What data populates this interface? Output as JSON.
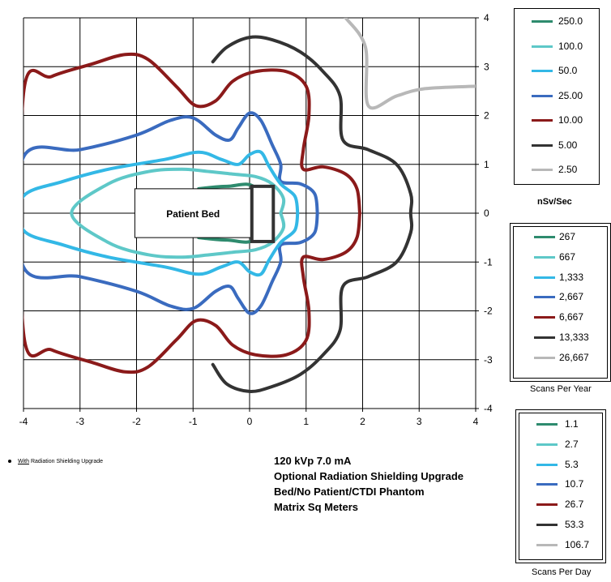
{
  "chart_data": {
    "type": "contour",
    "xlim": [
      -4,
      4
    ],
    "ylim": [
      -4,
      4
    ],
    "x_ticks": [
      "-4",
      "-3",
      "-2",
      "-1",
      "0",
      "1",
      "2",
      "3",
      "4"
    ],
    "y_ticks": [
      "4",
      "3",
      "2",
      "1",
      "0",
      "-1",
      "-2",
      "-3",
      "-4"
    ],
    "grid": true,
    "object_label": "Patient Bed",
    "series": [
      {
        "name": "250.0",
        "color": "#2e8b6e",
        "points": [
          [
            -0.9,
            0.5
          ],
          [
            -0.4,
            0.55
          ],
          [
            0.1,
            0.5
          ],
          [
            0.1,
            -0.5
          ],
          [
            -0.4,
            -0.55
          ],
          [
            -0.9,
            -0.5
          ]
        ]
      },
      {
        "name": "100.0",
        "color": "#5ec8c8",
        "points": [
          [
            0.55,
            0
          ],
          [
            0.6,
            0.3
          ],
          [
            0.4,
            0.6
          ],
          [
            0.1,
            0.75
          ],
          [
            -0.3,
            0.8
          ],
          [
            -0.7,
            0.85
          ],
          [
            -1.2,
            0.9
          ],
          [
            -1.8,
            0.85
          ],
          [
            -2.5,
            0.6
          ],
          [
            -3.15,
            0
          ],
          [
            -2.5,
            -0.6
          ],
          [
            -1.8,
            -0.85
          ],
          [
            -1.2,
            -0.9
          ],
          [
            -0.7,
            -0.85
          ],
          [
            -0.3,
            -0.8
          ],
          [
            0.1,
            -0.75
          ],
          [
            0.4,
            -0.6
          ],
          [
            0.6,
            -0.3
          ],
          [
            0.55,
            0
          ]
        ]
      },
      {
        "name": "50.0",
        "color": "#33b8e6",
        "points": [
          [
            0.85,
            0
          ],
          [
            0.8,
            0.35
          ],
          [
            0.55,
            0.6
          ],
          [
            0.35,
            0.95
          ],
          [
            0.2,
            1.25
          ],
          [
            0,
            1.2
          ],
          [
            -0.2,
            1.0
          ],
          [
            -0.5,
            1.1
          ],
          [
            -0.9,
            1.25
          ],
          [
            -1.5,
            1.1
          ],
          [
            -2.5,
            0.9
          ],
          [
            -3.3,
            0.65
          ],
          [
            -4,
            0.35
          ],
          [
            -4,
            -0.35
          ],
          [
            -3.3,
            -0.65
          ],
          [
            -2.5,
            -0.9
          ],
          [
            -1.5,
            -1.1
          ],
          [
            -0.9,
            -1.25
          ],
          [
            -0.5,
            -1.1
          ],
          [
            -0.2,
            -1.0
          ],
          [
            0,
            -1.2
          ],
          [
            0.2,
            -1.25
          ],
          [
            0.35,
            -0.95
          ],
          [
            0.55,
            -0.6
          ],
          [
            0.8,
            -0.35
          ],
          [
            0.85,
            0
          ]
        ]
      },
      {
        "name": "25.00",
        "color": "#3a6bbf",
        "points": [
          [
            1.2,
            0
          ],
          [
            1.15,
            0.4
          ],
          [
            0.9,
            0.6
          ],
          [
            0.55,
            0.65
          ],
          [
            0.55,
            1.0
          ],
          [
            0.4,
            1.4
          ],
          [
            0.2,
            1.9
          ],
          [
            0,
            2.05
          ],
          [
            -0.2,
            1.75
          ],
          [
            -0.35,
            1.5
          ],
          [
            -0.6,
            1.6
          ],
          [
            -1.0,
            1.95
          ],
          [
            -1.4,
            1.9
          ],
          [
            -2.0,
            1.6
          ],
          [
            -3.0,
            1.3
          ],
          [
            -4,
            1.15
          ],
          [
            -4,
            -1.1
          ],
          [
            -3.0,
            -1.3
          ],
          [
            -2.0,
            -1.6
          ],
          [
            -1.4,
            -1.9
          ],
          [
            -1.0,
            -1.95
          ],
          [
            -0.6,
            -1.6
          ],
          [
            -0.35,
            -1.5
          ],
          [
            -0.2,
            -1.75
          ],
          [
            0,
            -2.05
          ],
          [
            0.2,
            -1.9
          ],
          [
            0.4,
            -1.4
          ],
          [
            0.55,
            -1.0
          ],
          [
            0.55,
            -0.65
          ],
          [
            0.9,
            -0.6
          ],
          [
            1.15,
            -0.4
          ],
          [
            1.2,
            0
          ]
        ]
      },
      {
        "name": "10.00",
        "color": "#8b1a1a",
        "points": [
          [
            1.95,
            0
          ],
          [
            1.9,
            0.5
          ],
          [
            1.7,
            0.8
          ],
          [
            1.3,
            0.95
          ],
          [
            0.95,
            0.9
          ],
          [
            0.95,
            1.3
          ],
          [
            1.05,
            2.0
          ],
          [
            1.0,
            2.6
          ],
          [
            0.65,
            2.9
          ],
          [
            0.1,
            2.9
          ],
          [
            -0.3,
            2.7
          ],
          [
            -0.6,
            2.3
          ],
          [
            -0.95,
            2.2
          ],
          [
            -1.3,
            2.6
          ],
          [
            -1.8,
            3.15
          ],
          [
            -2.2,
            3.25
          ],
          [
            -2.8,
            3.05
          ],
          [
            -3.5,
            2.8
          ],
          [
            -4,
            2.45
          ],
          [
            -4,
            -2.45
          ],
          [
            -3.5,
            -2.8
          ],
          [
            -2.8,
            -3.05
          ],
          [
            -2.2,
            -3.25
          ],
          [
            -1.8,
            -3.15
          ],
          [
            -1.3,
            -2.6
          ],
          [
            -0.95,
            -2.2
          ],
          [
            -0.6,
            -2.3
          ],
          [
            -0.3,
            -2.7
          ],
          [
            0.1,
            -2.9
          ],
          [
            0.65,
            -2.9
          ],
          [
            1.0,
            -2.6
          ],
          [
            1.05,
            -2.0
          ],
          [
            0.95,
            -1.3
          ],
          [
            0.95,
            -0.9
          ],
          [
            1.3,
            -0.95
          ],
          [
            1.7,
            -0.8
          ],
          [
            1.9,
            -0.5
          ],
          [
            1.95,
            0
          ]
        ]
      },
      {
        "name": "5.00",
        "color": "#333333",
        "points": [
          [
            -0.65,
            3.1
          ],
          [
            -0.4,
            3.4
          ],
          [
            0,
            3.6
          ],
          [
            0.4,
            3.55
          ],
          [
            0.9,
            3.3
          ],
          [
            1.3,
            2.9
          ],
          [
            1.6,
            2.4
          ],
          [
            1.65,
            1.5
          ],
          [
            2.1,
            1.3
          ],
          [
            2.6,
            1.0
          ],
          [
            2.85,
            0.4
          ],
          [
            2.85,
            0
          ],
          [
            2.85,
            -0.4
          ],
          [
            2.6,
            -1.0
          ],
          [
            2.1,
            -1.3
          ],
          [
            1.65,
            -1.5
          ],
          [
            1.6,
            -2.4
          ],
          [
            1.3,
            -2.9
          ],
          [
            0.9,
            -3.3
          ],
          [
            0.4,
            -3.55
          ],
          [
            0,
            -3.65
          ],
          [
            -0.4,
            -3.5
          ],
          [
            -0.65,
            -3.1
          ]
        ]
      },
      {
        "name": "2.50",
        "color": "#b8b8b8",
        "points": [
          [
            1.7,
            4
          ],
          [
            2.05,
            3.4
          ],
          [
            2.1,
            2.2
          ],
          [
            2.6,
            2.4
          ],
          [
            3.1,
            2.55
          ],
          [
            4,
            2.6
          ]
        ]
      }
    ],
    "legends": [
      {
        "title": "nSv/Sec",
        "entries": [
          "250.0",
          "100.0",
          "50.0",
          "25.00",
          "10.00",
          "5.00",
          "2.50"
        ]
      },
      {
        "title": "Scans Per Year",
        "entries": [
          "267",
          "667",
          "1,333",
          "2,667",
          "6,667",
          "13,333",
          "26,667"
        ]
      },
      {
        "title": "Scans Per Day",
        "entries": [
          "1.1",
          "2.7",
          "5.3",
          "10.7",
          "26.7",
          "53.3",
          "106.7"
        ]
      }
    ],
    "annotations": [
      "120 kVp 7.0 mA",
      "Optional Radiation Shielding Upgrade",
      "Bed/No Patient/CTDI Phantom",
      "Matrix Sq  Meters"
    ]
  },
  "colors": [
    "#2e8b6e",
    "#5ec8c8",
    "#33b8e6",
    "#3a6bbf",
    "#8b1a1a",
    "#333333",
    "#b8b8b8"
  ],
  "note": {
    "underlined": "With",
    "rest": " Radiation Shielding Upgrade"
  }
}
